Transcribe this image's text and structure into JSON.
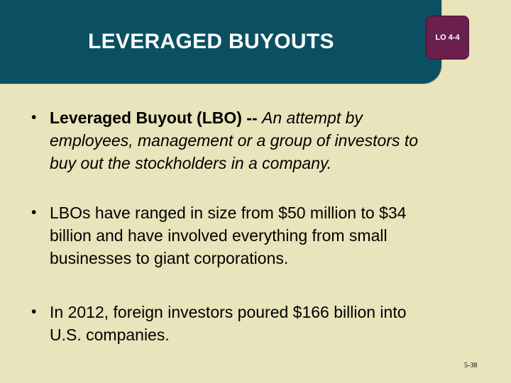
{
  "header": {
    "title": "LEVERAGED BUYOUTS",
    "badge": "LO 4-4"
  },
  "bullets": [
    {
      "marker": "•",
      "term": "Leveraged Buyout (LBO) --",
      "line1_rest": "An attempt by",
      "line2": "employees, management or a group of investors to",
      "line3": "buy out the stockholders in a company."
    },
    {
      "marker": "•",
      "line1": "LBOs have ranged in size from $50 million to $34",
      "line2": "billion and have involved everything from small",
      "line3": "businesses to giant corporations."
    },
    {
      "marker": "•",
      "line1": "In 2012, foreign investors poured $166 billion into",
      "line2": "U.S. companies."
    }
  ],
  "footer": {
    "slide_number": "5-38"
  },
  "colors": {
    "background": "#e8e4bb",
    "banner": "#0b5062",
    "badge": "#6b1f4c"
  }
}
